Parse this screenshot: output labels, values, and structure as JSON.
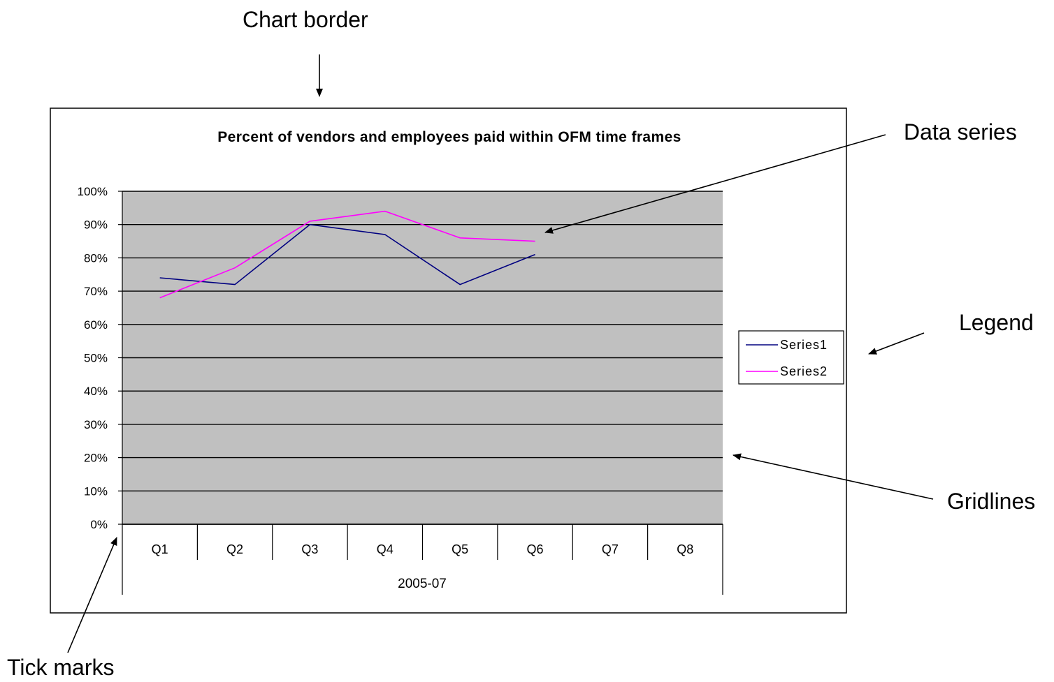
{
  "annotations": {
    "chart_border": "Chart border",
    "data_series": "Data series",
    "legend": "Legend",
    "gridlines": "Gridlines",
    "tick_marks": "Tick marks"
  },
  "colors": {
    "plot_background": "#c0c0c0",
    "series1": "#000080",
    "series2": "#ff00ff",
    "gridline": "#000000"
  },
  "chart_data": {
    "type": "line",
    "title": "Percent of vendors and employees paid within OFM time frames",
    "categories": [
      "Q1",
      "Q2",
      "Q3",
      "Q4",
      "Q5",
      "Q6",
      "Q7",
      "Q8"
    ],
    "category_group_label": "2005-07",
    "yticks": [
      "0%",
      "10%",
      "20%",
      "30%",
      "40%",
      "50%",
      "60%",
      "70%",
      "80%",
      "90%",
      "100%"
    ],
    "ylim": [
      0,
      100
    ],
    "grid": true,
    "legend_position": "right",
    "series": [
      {
        "name": "Series1",
        "values": [
          74,
          72,
          90,
          87,
          72,
          81,
          null,
          null
        ]
      },
      {
        "name": "Series2",
        "values": [
          68,
          77,
          91,
          94,
          86,
          85,
          null,
          null
        ]
      }
    ]
  }
}
